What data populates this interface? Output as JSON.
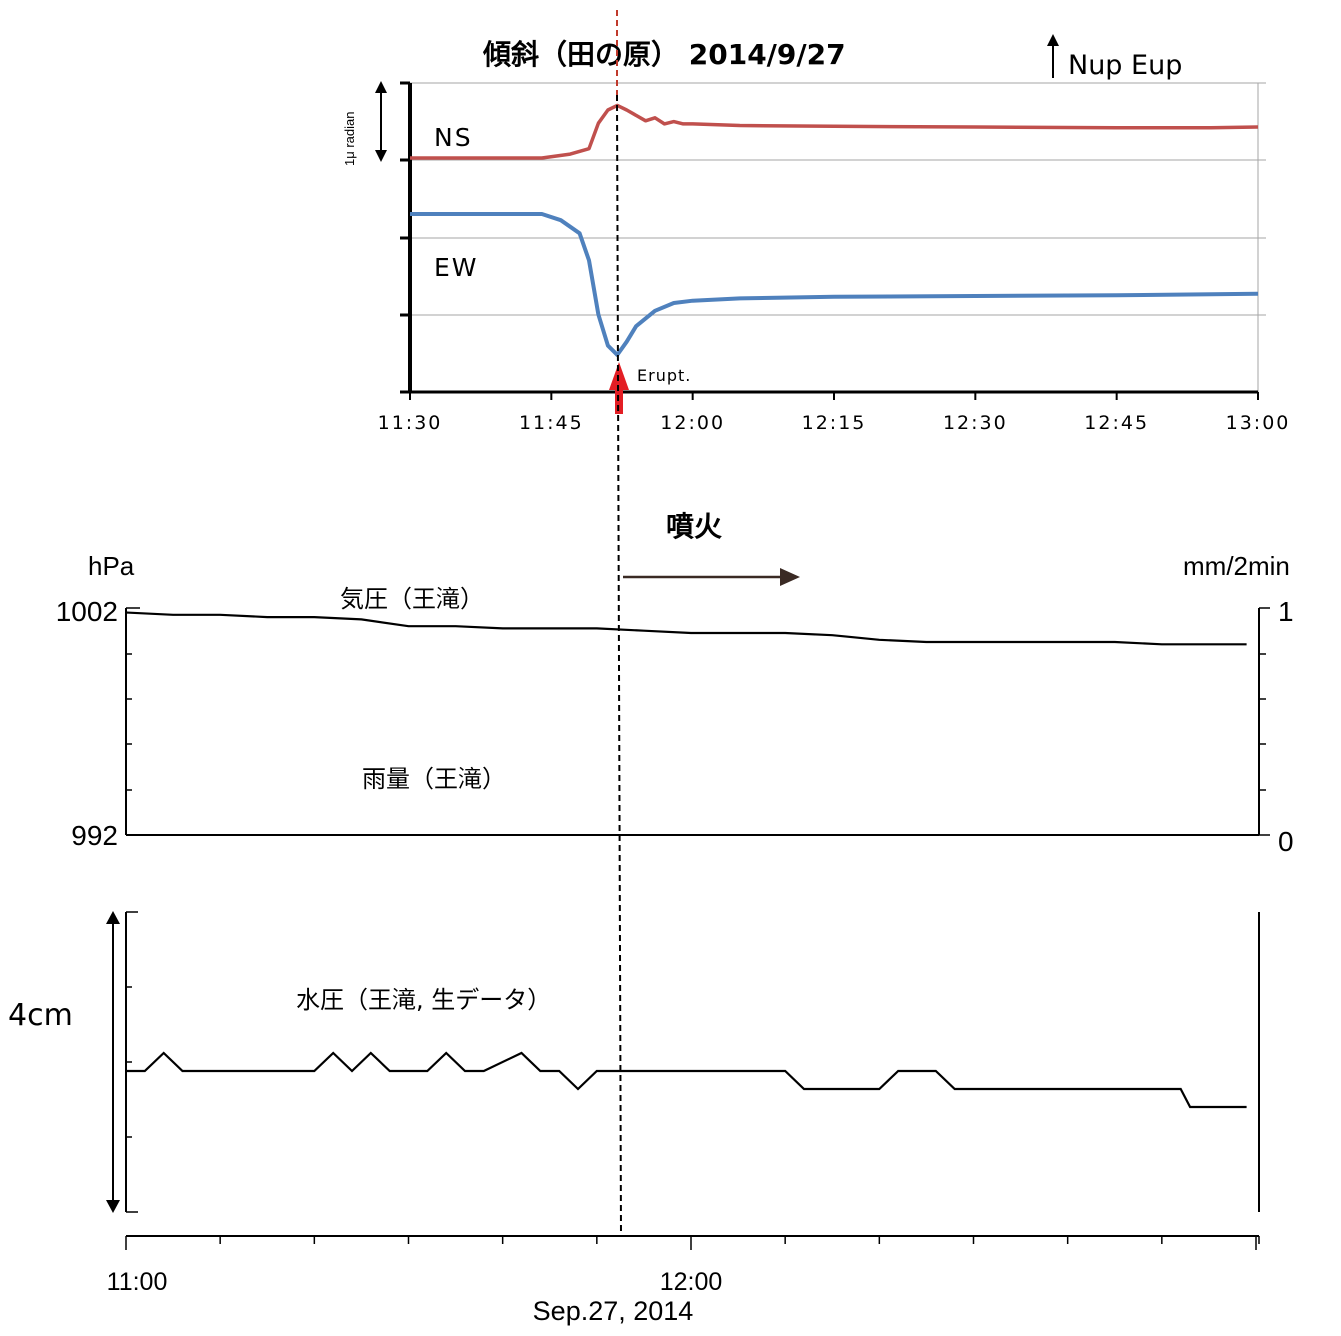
{
  "chart_data": [
    {
      "type": "line",
      "title": "傾斜（田の原）  2014/9/27",
      "direction_note": "Nup Eup",
      "scale_label": "1μ radian",
      "x_ticks": [
        "11:30",
        "11:45",
        "12:00",
        "12:15",
        "12:30",
        "12:45",
        "13:00"
      ],
      "xlim": [
        "11:30",
        "13:00"
      ],
      "grid": true,
      "annotation": "Erupt.",
      "eruption_time": "11:52",
      "series": [
        {
          "name": "NS",
          "color": "#c0504d",
          "x": [
            "11:30",
            "11:44",
            "11:47",
            "11:49",
            "11:50",
            "11:51",
            "11:52",
            "11:53",
            "11:55",
            "11:56",
            "11:57",
            "11:58",
            "11:59",
            "12:00",
            "12:05",
            "12:15",
            "12:30",
            "12:45",
            "12:55",
            "13:00"
          ],
          "y": [
            0.0,
            0.0,
            0.05,
            0.12,
            0.45,
            0.62,
            0.68,
            0.62,
            0.48,
            0.52,
            0.44,
            0.47,
            0.44,
            0.44,
            0.42,
            0.41,
            0.4,
            0.39,
            0.39,
            0.4
          ]
        },
        {
          "name": "EW",
          "color": "#4f81bd",
          "x": [
            "11:30",
            "11:44",
            "11:46",
            "11:48",
            "11:49",
            "11:50",
            "11:51",
            "11:52",
            "11:53",
            "11:54",
            "11:56",
            "11:58",
            "12:00",
            "12:05",
            "12:15",
            "12:30",
            "12:45",
            "13:00"
          ],
          "y": [
            0.0,
            0.0,
            -0.08,
            -0.25,
            -0.6,
            -1.3,
            -1.7,
            -1.82,
            -1.65,
            -1.45,
            -1.25,
            -1.15,
            -1.12,
            -1.09,
            -1.07,
            -1.06,
            -1.05,
            -1.03
          ]
        }
      ]
    },
    {
      "type": "line",
      "series": [
        {
          "name": "気圧（王滝）",
          "units": "hPa",
          "x": [
            "11:00",
            "11:05",
            "11:10",
            "11:15",
            "11:20",
            "11:25",
            "11:30",
            "11:35",
            "11:40",
            "11:45",
            "11:50",
            "11:55",
            "12:00",
            "12:10",
            "12:15",
            "12:20",
            "12:25",
            "12:30",
            "12:40",
            "12:45",
            "12:50",
            "12:59"
          ],
          "y": [
            1001.8,
            1001.7,
            1001.7,
            1001.6,
            1001.6,
            1001.5,
            1001.2,
            1001.2,
            1001.1,
            1001.1,
            1001.1,
            1001.0,
            1000.9,
            1000.9,
            1000.8,
            1000.6,
            1000.5,
            1000.5,
            1000.5,
            1000.5,
            1000.4,
            1000.4
          ]
        },
        {
          "name": "雨量（王滝）",
          "units": "mm/2min",
          "x": [
            "11:00",
            "12:59"
          ],
          "y": [
            0,
            0
          ]
        }
      ],
      "y_left": {
        "label": "hPa",
        "top": "1002",
        "bottom": "992"
      },
      "y_right": {
        "label": "mm/2min",
        "top": "1",
        "bottom": "0"
      },
      "annotation": "噴火"
    },
    {
      "type": "line",
      "series": [
        {
          "name": "水圧（王滝, 生データ）",
          "x": [
            "11:00",
            "11:02",
            "11:04",
            "11:06",
            "11:20",
            "11:22",
            "11:24",
            "11:26",
            "11:28",
            "11:32",
            "11:34",
            "11:36",
            "11:38",
            "11:42",
            "11:44",
            "11:46",
            "11:48",
            "11:50",
            "11:52",
            "11:54",
            "11:56",
            "12:10",
            "12:12",
            "12:14",
            "12:20",
            "12:22",
            "12:24",
            "12:26",
            "12:28",
            "12:33",
            "12:35",
            "12:38",
            "12:40",
            "12:42",
            "12:45",
            "12:52",
            "12:53",
            "12:55",
            "12:59"
          ],
          "y": [
            0,
            0,
            0.5,
            0,
            0,
            0.5,
            0,
            0.5,
            0,
            0,
            0.5,
            0,
            0,
            0.5,
            0,
            0,
            -0.5,
            0,
            0,
            0,
            0,
            0,
            -0.5,
            -0.5,
            -0.5,
            0,
            0,
            0,
            -0.5,
            -0.5,
            -0.5,
            -0.5,
            -0.5,
            -0.5,
            -0.5,
            -0.5,
            -1.0,
            -1.0,
            -1.0
          ]
        }
      ],
      "scale_label": "4cm",
      "x_ticks": [
        "11:00",
        "12:00"
      ],
      "date_label": "Sep.27, 2014"
    }
  ]
}
